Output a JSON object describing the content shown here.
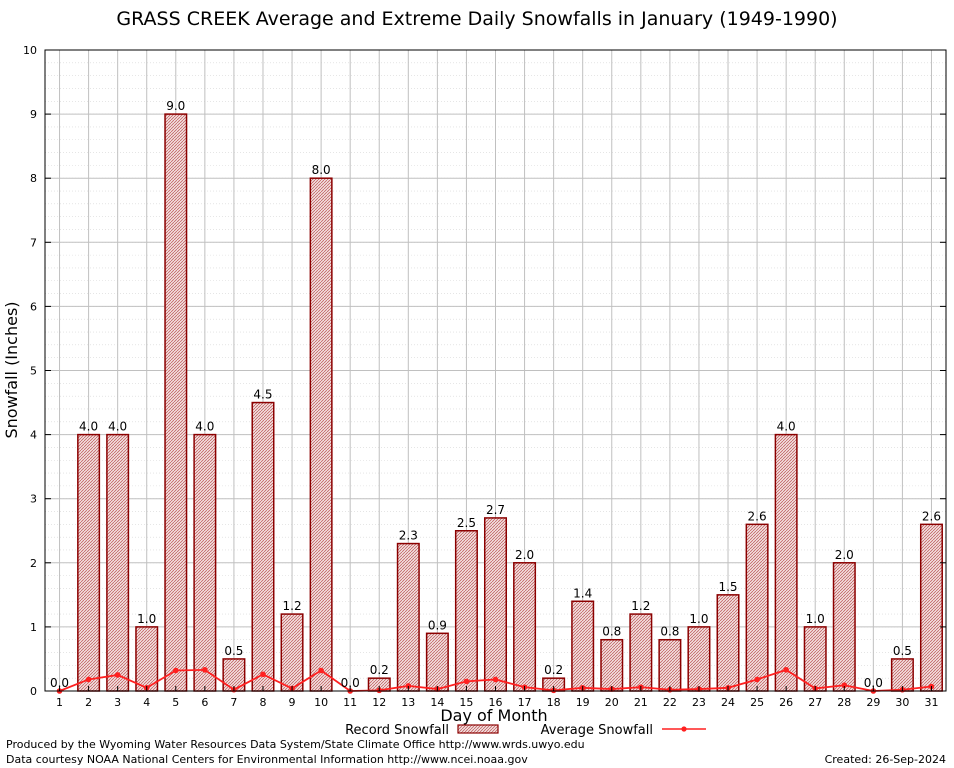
{
  "title": "GRASS CREEK Average and Extreme Daily Snowfalls in January (1949-1990)",
  "footer": {
    "line1": "Produced by the Wyoming Water Resources Data System/State Climate Office http://www.wrds.uwyo.edu",
    "line2": "Data courtesy NOAA National Centers for Environmental Information http://www.ncei.noaa.gov",
    "created": "Created:  26-Sep-2024"
  },
  "colors": {
    "bar_fill": "#e8c8c8",
    "bar_stroke": "#8b0000",
    "line": "#ff2020",
    "grid_major": "#c0c0c0",
    "grid_minor": "#d6d6d6"
  },
  "chart_data": {
    "type": "bar",
    "title": "GRASS CREEK Average and Extreme Daily Snowfalls in January (1949-1990)",
    "xlabel": "Day of Month",
    "ylabel": "Snowfall (Inches)",
    "ylim": [
      0,
      10
    ],
    "yticks": [
      0,
      1,
      2,
      3,
      4,
      5,
      6,
      7,
      8,
      9,
      10
    ],
    "grid": true,
    "legend_position": "bottom-center",
    "categories": [
      "1",
      "2",
      "3",
      "4",
      "5",
      "6",
      "7",
      "8",
      "9",
      "10",
      "11",
      "12",
      "13",
      "14",
      "15",
      "16",
      "17",
      "18",
      "19",
      "20",
      "21",
      "22",
      "23",
      "24",
      "25",
      "26",
      "27",
      "28",
      "29",
      "30",
      "31"
    ],
    "series": [
      {
        "name": "Record Snowfall",
        "kind": "bar",
        "values": [
          0.0,
          4.0,
          4.0,
          1.0,
          9.0,
          4.0,
          0.5,
          4.5,
          1.2,
          8.0,
          0.0,
          0.2,
          2.3,
          0.9,
          2.5,
          2.7,
          2.0,
          0.2,
          1.4,
          0.8,
          1.2,
          0.8,
          1.0,
          1.5,
          2.6,
          4.0,
          1.0,
          2.0,
          0.0,
          0.5,
          2.6
        ],
        "labels": [
          "0.0",
          "4.0",
          "4.0",
          "1.0",
          "9.0",
          "4.0",
          "0.5",
          "4.5",
          "1.2",
          "8.0",
          "0.0",
          "0.2",
          "2.3",
          "0.9",
          "2.5",
          "2.7",
          "2.0",
          "0.2",
          "1.4",
          "0.8",
          "1.2",
          "0.8",
          "1.0",
          "1.5",
          "2.6",
          "4.0",
          "1.0",
          "2.0",
          "0.0",
          "0.5",
          "2.6"
        ]
      },
      {
        "name": "Average Snowfall",
        "kind": "line",
        "values": [
          0.0,
          0.18,
          0.25,
          0.05,
          0.32,
          0.33,
          0.02,
          0.26,
          0.04,
          0.32,
          0.0,
          0.01,
          0.08,
          0.03,
          0.15,
          0.18,
          0.06,
          0.01,
          0.05,
          0.03,
          0.06,
          0.02,
          0.03,
          0.05,
          0.18,
          0.33,
          0.04,
          0.09,
          0.0,
          0.02,
          0.07
        ]
      }
    ]
  }
}
